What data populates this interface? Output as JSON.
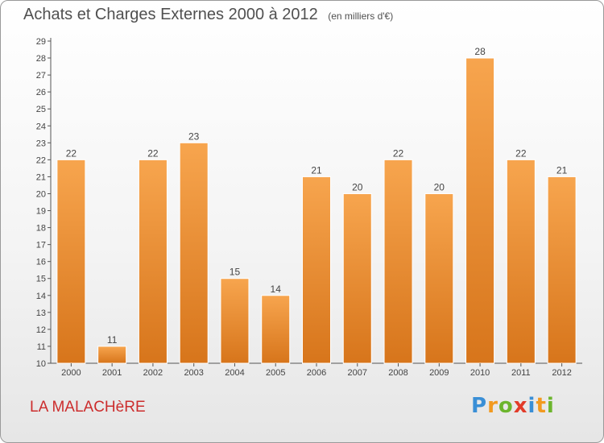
{
  "title": "Achats et Charges Externes 2000 à 2012",
  "subtitle": "(en milliers d'€)",
  "town": "LA MALACHèRE",
  "brand": {
    "letters": [
      "P",
      "r",
      "o",
      "x",
      "i",
      "t",
      "i"
    ],
    "colors": [
      "#3a8fd6",
      "#f29a1f",
      "#6cb52d",
      "#e23c2a",
      "#3a8fd6",
      "#f29a1f",
      "#6cb52d"
    ]
  },
  "colors": {
    "bar_light": "#f7a54e",
    "bar_dark": "#d7751b",
    "axis": "#555555",
    "text": "#444444"
  },
  "chart_data": {
    "type": "bar",
    "categories": [
      "2000",
      "2001",
      "2002",
      "2003",
      "2004",
      "2005",
      "2006",
      "2007",
      "2008",
      "2009",
      "2010",
      "2011",
      "2012"
    ],
    "values": [
      22,
      11,
      22,
      23,
      15,
      14,
      21,
      20,
      22,
      20,
      28,
      22,
      21
    ],
    "ylim": [
      10,
      29
    ],
    "yticks": [
      10,
      11,
      12,
      13,
      14,
      15,
      16,
      17,
      18,
      19,
      20,
      21,
      22,
      23,
      24,
      25,
      26,
      27,
      28,
      29
    ],
    "grid": false,
    "data_labels": true
  }
}
